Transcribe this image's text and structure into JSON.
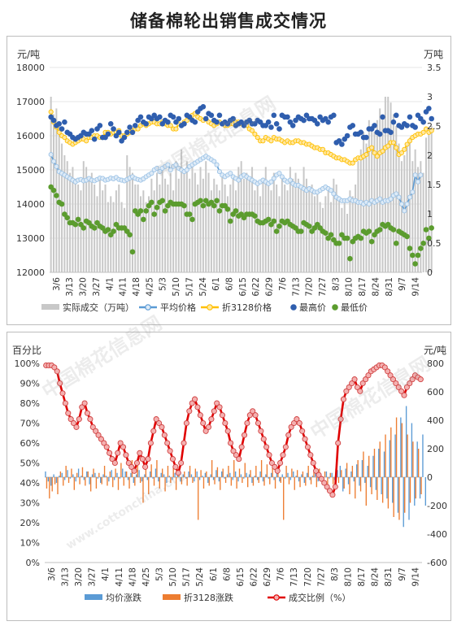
{
  "page": {
    "title": "储备棉轮出销售成交情况"
  },
  "chart_data": [
    {
      "type": "bar+line+scatter",
      "x_tick_labels": [
        "3/6",
        "3/13",
        "3/20",
        "3/27",
        "4/1",
        "4/11",
        "4/18",
        "4/25",
        "5/3",
        "5/10",
        "5/17",
        "5/24",
        "6/1",
        "6/8",
        "6/15",
        "6/22",
        "6/29",
        "7/6",
        "7/13",
        "7/20",
        "7/27",
        "8/3",
        "8/10",
        "8/17",
        "8/24",
        "8/31",
        "9/7",
        "9/14"
      ],
      "y_left": {
        "unit": "元/吨",
        "min": 12000,
        "max": 18000,
        "ticks": [
          "12000",
          "13000",
          "14000",
          "15000",
          "16000",
          "17000",
          "18000"
        ]
      },
      "y_right": {
        "unit": "万吨",
        "min": 0,
        "max": 3.5,
        "ticks": [
          "0",
          "0.5",
          "1",
          "1.5",
          "2",
          "2.5",
          "3",
          "3.5"
        ]
      },
      "legend": [
        "实际成交（万吨）",
        "平均价格",
        "折3128价格",
        "最高价",
        "最低价"
      ],
      "legend_placement": "bottom",
      "colors": {
        "volume": "#c8c8c8",
        "avg": "#9dc3e6",
        "avg_line": "#5b9bd5",
        "p3128": "#ffc000",
        "high": "#2f5eae",
        "low": "#5b9c2e"
      },
      "volume": [
        3.0,
        2.7,
        2.8,
        2.5,
        2.2,
        2.0,
        1.9,
        1.7,
        1.8,
        1.6,
        1.5,
        1.4,
        1.9,
        1.8,
        1.6,
        1.7,
        1.5,
        1.3,
        1.6,
        1.4,
        1.5,
        1.2,
        1.3,
        1.2,
        1.4,
        1.5,
        1.2,
        1.1,
        2.0,
        1.8,
        1.7,
        1.5,
        1.5,
        1.3,
        1.4,
        1.2,
        1.3,
        1.6,
        1.4,
        1.7,
        1.5,
        1.8,
        1.6,
        1.5,
        1.7,
        1.4,
        1.9,
        1.6,
        2.1,
        1.7,
        1.9,
        1.6,
        1.8,
        1.7,
        1.5,
        1.8,
        1.6,
        1.9,
        1.7,
        1.4,
        1.6,
        1.5,
        1.4,
        1.7,
        1.5,
        1.3,
        1.5,
        1.6,
        1.4,
        1.8,
        1.9,
        1.6,
        1.7,
        1.6,
        1.8,
        1.4,
        1.5,
        1.3,
        1.6,
        1.8,
        1.5,
        1.4,
        1.7,
        1.5,
        1.3,
        1.6,
        1.5,
        1.4,
        1.8,
        1.6,
        1.7,
        1.6,
        1.5,
        1.8,
        1.6,
        1.4,
        1.5,
        1.3,
        1.4,
        1.2,
        1.1,
        1.3,
        1.4,
        1.2,
        1.6,
        1.5,
        1.3,
        1.1,
        1.2,
        1.0,
        1.4,
        1.3,
        1.5,
        1.9,
        2.1,
        2.4,
        2.2,
        2.6,
        2.5,
        2.4,
        2.6,
        2.8,
        2.7,
        3.0,
        3.0,
        2.9,
        2.7,
        2.5,
        2.2,
        1.9,
        2.0,
        2.2,
        2.3,
        1.9,
        2.1,
        1.8,
        1.9,
        1.7,
        2.3,
        2.4,
        2.5
      ],
      "avg_price": [
        15450,
        15250,
        15100,
        14950,
        14900,
        14850,
        14800,
        14750,
        14700,
        14650,
        14700,
        14720,
        14680,
        14700,
        14750,
        14700,
        14680,
        14720,
        14760,
        14750,
        14700,
        14720,
        14760,
        14740,
        14780,
        14720,
        14700,
        14680,
        14720,
        14760,
        14800,
        14750,
        14720,
        14700,
        14740,
        14800,
        14850,
        14900,
        15000,
        15050,
        14950,
        15050,
        15100,
        15150,
        15000,
        15100,
        15150,
        15050,
        15000,
        14950,
        15000,
        15100,
        15150,
        15200,
        15250,
        15300,
        15350,
        15400,
        15350,
        15300,
        15250,
        15150,
        14950,
        14850,
        14800,
        14850,
        14900,
        14800,
        14750,
        14700,
        14800,
        14850,
        14800,
        14750,
        14700,
        14650,
        14600,
        14650,
        14700,
        14650,
        14600,
        14650,
        14750,
        14850,
        14900,
        14800,
        14700,
        14650,
        14700,
        14600,
        14550,
        14550,
        14500,
        14450,
        14400,
        14450,
        14400,
        14350,
        14350,
        14400,
        14450,
        14500,
        14450,
        14400,
        14300,
        14200,
        14150,
        14100,
        14100,
        14100,
        14150,
        14100,
        14100,
        14050,
        14050,
        14000,
        14050,
        14000,
        14100,
        14050,
        14100,
        14150,
        14050,
        14100,
        14100,
        14150,
        14250,
        14300,
        14200,
        14000,
        13800,
        14000,
        14200,
        14350,
        14850,
        14650,
        14850
      ],
      "price_3128": [
        16700,
        16400,
        16250,
        16100,
        16000,
        15950,
        15850,
        15800,
        15750,
        15800,
        15850,
        15900,
        15900,
        15850,
        15950,
        15950,
        16000,
        16000,
        15950,
        15950,
        16100,
        16100,
        16050,
        16100,
        16100,
        16150,
        16000,
        16000,
        16050,
        16100,
        16150,
        16200,
        16200,
        16300,
        16350,
        16300,
        16350,
        16400,
        16400,
        16350,
        16350,
        16400,
        16350,
        16300,
        16300,
        16200,
        16200,
        16350,
        16300,
        16400,
        16450,
        16550,
        16600,
        16650,
        16550,
        16500,
        16450,
        16500,
        16400,
        16350,
        16300,
        16350,
        16400,
        16350,
        16300,
        16300,
        16350,
        16350,
        16400,
        16400,
        16350,
        16350,
        16300,
        16200,
        16150,
        16050,
        15950,
        15850,
        15850,
        15950,
        15900,
        15850,
        15950,
        15900,
        15900,
        15850,
        15800,
        15850,
        15800,
        15800,
        15850,
        15850,
        15800,
        15800,
        15750,
        15750,
        15700,
        15650,
        15650,
        15600,
        15600,
        15500,
        15500,
        15450,
        15400,
        15350,
        15350,
        15300,
        15300,
        15250,
        15200,
        15200,
        15300,
        15350,
        15350,
        15400,
        15450,
        15600,
        15650,
        15500,
        15400,
        15500,
        15550,
        15650,
        15700,
        15800,
        15800,
        15650,
        15450,
        15500,
        15600,
        15750,
        15850,
        15950,
        16000,
        16050,
        16050,
        16100,
        16200,
        16100,
        16150
      ],
      "high_price": [
        16550,
        16450,
        16300,
        16350,
        16200,
        16400,
        16100,
        16050,
        15950,
        15900,
        15950,
        16000,
        16100,
        16050,
        16050,
        16150,
        15900,
        16200,
        16300,
        15950,
        15950,
        16050,
        16350,
        16200,
        16000,
        16100,
        15850,
        15950,
        16100,
        16250,
        16100,
        16300,
        16450,
        16550,
        16400,
        16350,
        16550,
        16500,
        16600,
        16500,
        16550,
        16350,
        16450,
        16400,
        16600,
        16550,
        16400,
        16500,
        16300,
        16350,
        16600,
        16550,
        16450,
        16400,
        16700,
        16800,
        16850,
        16500,
        16650,
        16600,
        16450,
        16400,
        16600,
        16350,
        16400,
        16350,
        16450,
        16500,
        16300,
        16350,
        16400,
        16300,
        16400,
        16450,
        16350,
        16350,
        16450,
        16400,
        16300,
        16300,
        16400,
        16250,
        16600,
        16350,
        16200,
        16600,
        16550,
        16550,
        16400,
        16300,
        16450,
        16550,
        16500,
        16450,
        16600,
        16500,
        16500,
        16450,
        16350,
        16550,
        16450,
        16500,
        16400,
        16550,
        16600,
        15800,
        15850,
        15750,
        15900,
        16000,
        16250,
        16300,
        16050,
        16050,
        16100,
        15950,
        15950,
        16200,
        16200,
        16300,
        16100,
        16050,
        16550,
        16150,
        16150,
        16100,
        16400,
        16600,
        16300,
        16250,
        16350,
        16300,
        16550,
        16300,
        16250,
        16600,
        16500,
        16400,
        16700,
        16800,
        16500
      ],
      "low_price": [
        14500,
        14400,
        14250,
        14050,
        14000,
        13700,
        13600,
        13450,
        13450,
        13400,
        13550,
        13400,
        13300,
        13500,
        13450,
        13350,
        13300,
        13450,
        13350,
        13300,
        13200,
        13250,
        13100,
        13200,
        13400,
        13300,
        13300,
        13300,
        13200,
        13100,
        12600,
        13800,
        13700,
        13800,
        13550,
        13800,
        13950,
        14050,
        13700,
        13900,
        14050,
        14100,
        13800,
        13950,
        14050,
        14000,
        14000,
        14000,
        14000,
        13950,
        13700,
        13700,
        13550,
        14000,
        14050,
        14100,
        13950,
        14100,
        14000,
        14050,
        13950,
        14100,
        13800,
        13950,
        13950,
        13850,
        13500,
        13700,
        13800,
        13650,
        13700,
        13600,
        13700,
        13700,
        13700,
        13650,
        13500,
        13450,
        13450,
        13500,
        13550,
        13400,
        13500,
        13200,
        13350,
        13500,
        13450,
        13500,
        13400,
        13350,
        13300,
        13200,
        13200,
        13450,
        13400,
        13350,
        13200,
        13300,
        13400,
        13300,
        13200,
        13150,
        13000,
        13100,
        12950,
        12850,
        12850,
        13100,
        13000,
        13000,
        12400,
        12900,
        13000,
        13050,
        13000,
        13200,
        13150,
        13200,
        12900,
        13100,
        13200,
        13250,
        13400,
        13350,
        13400,
        13300,
        13250,
        12850,
        13200,
        13150,
        13100,
        13050,
        12700,
        12500,
        12250,
        12500,
        12700,
        12850,
        13250,
        13000,
        13300
      ]
    },
    {
      "type": "bar+line",
      "x_tick_labels": [
        "3/6",
        "3/13",
        "3/20",
        "3/27",
        "4/1",
        "4/11",
        "4/18",
        "4/25",
        "5/3",
        "5/10",
        "5/17",
        "5/24",
        "6/1",
        "6/8",
        "6/15",
        "6/22",
        "6/29",
        "7/6",
        "7/13",
        "7/20",
        "7/27",
        "8/3",
        "8/10",
        "8/17",
        "8/24",
        "8/31",
        "9/7",
        "9/14"
      ],
      "y_left": {
        "unit": "百分比",
        "min": 0,
        "max": 100,
        "ticks": [
          "0%",
          "10%",
          "20%",
          "30%",
          "40%",
          "50%",
          "60%",
          "70%",
          "80%",
          "90%",
          "100%"
        ]
      },
      "y_right": {
        "unit": "元/吨",
        "min": -600,
        "max": 800,
        "ticks": [
          "-600",
          "-400",
          "-200",
          "0",
          "200",
          "400",
          "600",
          "800"
        ]
      },
      "legend": [
        "均价涨跌",
        "折3128涨跌",
        "成交比例（%）"
      ],
      "legend_placement": "bottom",
      "colors": {
        "avg_change": "#5b9bd5",
        "p3128_change": "#ed7d31",
        "ratio": "#e00000",
        "ratio_marker": "#f4b0b0"
      },
      "ratio_pct": [
        99,
        99,
        99,
        98,
        96,
        90,
        85,
        80,
        75,
        72,
        70,
        68,
        72,
        78,
        80,
        75,
        72,
        68,
        66,
        64,
        62,
        60,
        58,
        55,
        52,
        50,
        55,
        60,
        58,
        54,
        50,
        48,
        46,
        50,
        55,
        52,
        48,
        52,
        60,
        66,
        72,
        70,
        68,
        64,
        60,
        56,
        52,
        48,
        45,
        50,
        60,
        70,
        76,
        80,
        82,
        78,
        74,
        70,
        66,
        68,
        72,
        76,
        80,
        78,
        74,
        70,
        66,
        60,
        56,
        54,
        52,
        58,
        64,
        70,
        74,
        76,
        74,
        70,
        66,
        62,
        58,
        54,
        50,
        48,
        46,
        50,
        54,
        58,
        64,
        68,
        70,
        72,
        70,
        66,
        62,
        58,
        54,
        50,
        46,
        44,
        42,
        40,
        38,
        36,
        34,
        38,
        60,
        72,
        82,
        86,
        88,
        90,
        92,
        88,
        86,
        90,
        92,
        94,
        96,
        97,
        98,
        99,
        99,
        98,
        96,
        94,
        92,
        90,
        88,
        86,
        84,
        88,
        90,
        92,
        94,
        93,
        92
      ],
      "avg_change": [
        40,
        -30,
        -60,
        20,
        -40,
        10,
        30,
        -20,
        50,
        -10,
        20,
        -30,
        60,
        10,
        -20,
        40,
        -50,
        20,
        30,
        -10,
        -40,
        20,
        10,
        -30,
        50,
        -20,
        30,
        -10,
        60,
        40,
        -20,
        30,
        -40,
        20,
        50,
        -30,
        20,
        -20,
        40,
        -10,
        60,
        -30,
        30,
        20,
        -40,
        10,
        -20,
        30,
        50,
        -30,
        20,
        -10,
        40,
        20,
        -30,
        40,
        -20,
        10,
        30,
        -40,
        20,
        -20,
        50,
        -30,
        40,
        -10,
        20,
        30,
        -20,
        40,
        -30,
        20,
        -10,
        30,
        20,
        -40,
        10,
        -20,
        40,
        -30,
        20,
        -10,
        30,
        -20,
        40,
        -30,
        20,
        -10,
        30,
        -20,
        40,
        10,
        -30,
        20,
        -40,
        30,
        -20,
        10,
        50,
        -30,
        20,
        -20,
        40,
        -10,
        30,
        -20,
        50,
        80,
        -100,
        60,
        -50,
        40,
        -30,
        90,
        -60,
        120,
        -40,
        80,
        -70,
        150,
        -90,
        200,
        -120,
        180,
        -150,
        260,
        -180,
        300,
        -250,
        420,
        -350,
        500,
        -300,
        380,
        -200,
        250,
        -150,
        300,
        -200
      ],
      "p3128_change": [
        -80,
        -150,
        -100,
        -50,
        -120,
        40,
        -60,
        80,
        -40,
        60,
        -90,
        30,
        -50,
        70,
        -60,
        40,
        -100,
        60,
        -80,
        30,
        -50,
        80,
        -60,
        40,
        -70,
        60,
        -90,
        100,
        -60,
        40,
        -80,
        120,
        -60,
        80,
        -40,
        -180,
        60,
        -120,
        90,
        -60,
        120,
        -80,
        60,
        -100,
        80,
        -40,
        70,
        -90,
        60,
        -50,
        40,
        -60,
        80,
        -40,
        60,
        -300,
        50,
        -80,
        40,
        -60,
        120,
        -50,
        70,
        -90,
        60,
        -40,
        80,
        -60,
        120,
        -80,
        60,
        -40,
        100,
        -70,
        50,
        -60,
        80,
        -40,
        120,
        -60,
        90,
        -50,
        70,
        -80,
        60,
        -40,
        -300,
        80,
        -50,
        60,
        -90,
        50,
        -70,
        40,
        -60,
        80,
        -50,
        40,
        -70,
        60,
        -50,
        40,
        -60,
        30,
        -50,
        60,
        -40,
        50,
        -80,
        100,
        -120,
        80,
        -150,
        120,
        -100,
        180,
        -200,
        150,
        -120,
        200,
        -160,
        250,
        -180,
        300,
        -220,
        350,
        -280,
        420,
        -300,
        380,
        -250,
        300,
        -180,
        250,
        -150,
        200,
        -120
      ]
    }
  ],
  "watermark": {
    "text": "中国棉花信息网",
    "url": "www.cottonchina.org"
  }
}
